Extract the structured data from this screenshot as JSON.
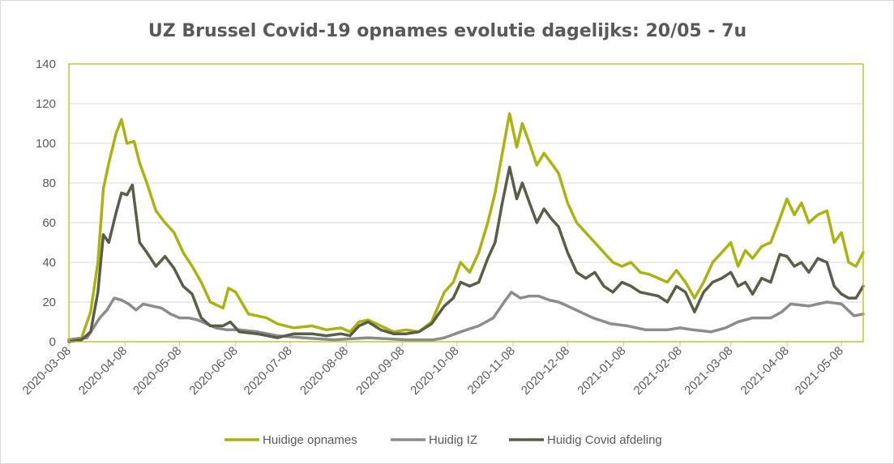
{
  "chart_data": {
    "type": "line",
    "title": "UZ Brussel Covid-19 opnames evolutie dagelijks: 20/05 - 7u",
    "xlabel": "",
    "ylabel": "",
    "ylim": [
      0,
      140
    ],
    "y_ticks": [
      "0",
      "20",
      "40",
      "60",
      "80",
      "100",
      "120",
      "140"
    ],
    "x_tick_labels": [
      "2020-03-08",
      "2020-04-08",
      "2020-05-08",
      "2020-06-08",
      "2020-07-08",
      "2020-08-08",
      "2020-09-08",
      "2020-10-08",
      "2020-11-08",
      "2020-12-08",
      "2021-01-08",
      "2021-02-08",
      "2021-03-08",
      "2021-04-08",
      "2021-05-08"
    ],
    "x_range": [
      "2020-03-08",
      "2021-05-20"
    ],
    "grid": "horizontal",
    "legend_position": "bottom",
    "series": [
      {
        "name": "Huidige opnames",
        "color": "#a9b40f",
        "points": [
          [
            "2020-03-08",
            1
          ],
          [
            "2020-03-15",
            2
          ],
          [
            "2020-03-20",
            15
          ],
          [
            "2020-03-24",
            40
          ],
          [
            "2020-03-27",
            77
          ],
          [
            "2020-03-30",
            90
          ],
          [
            "2020-04-03",
            105
          ],
          [
            "2020-04-06",
            112
          ],
          [
            "2020-04-09",
            100
          ],
          [
            "2020-04-13",
            101
          ],
          [
            "2020-04-16",
            90
          ],
          [
            "2020-04-20",
            80
          ],
          [
            "2020-04-25",
            66
          ],
          [
            "2020-04-30",
            60
          ],
          [
            "2020-05-05",
            55
          ],
          [
            "2020-05-10",
            45
          ],
          [
            "2020-05-15",
            38
          ],
          [
            "2020-05-20",
            30
          ],
          [
            "2020-05-25",
            20
          ],
          [
            "2020-06-01",
            17
          ],
          [
            "2020-06-04",
            27
          ],
          [
            "2020-06-08",
            25
          ],
          [
            "2020-06-15",
            14
          ],
          [
            "2020-06-25",
            12
          ],
          [
            "2020-07-01",
            9
          ],
          [
            "2020-07-10",
            7
          ],
          [
            "2020-07-20",
            8
          ],
          [
            "2020-07-28",
            6
          ],
          [
            "2020-08-05",
            7
          ],
          [
            "2020-08-10",
            5
          ],
          [
            "2020-08-15",
            10
          ],
          [
            "2020-08-20",
            11
          ],
          [
            "2020-08-27",
            8
          ],
          [
            "2020-09-03",
            5
          ],
          [
            "2020-09-10",
            6
          ],
          [
            "2020-09-17",
            5
          ],
          [
            "2020-09-24",
            10
          ],
          [
            "2020-10-01",
            25
          ],
          [
            "2020-10-06",
            30
          ],
          [
            "2020-10-10",
            40
          ],
          [
            "2020-10-15",
            35
          ],
          [
            "2020-10-20",
            45
          ],
          [
            "2020-10-25",
            60
          ],
          [
            "2020-10-29",
            75
          ],
          [
            "2020-11-02",
            95
          ],
          [
            "2020-11-06",
            115
          ],
          [
            "2020-11-10",
            98
          ],
          [
            "2020-11-13",
            110
          ],
          [
            "2020-11-17",
            100
          ],
          [
            "2020-11-21",
            89
          ],
          [
            "2020-11-25",
            95
          ],
          [
            "2020-11-29",
            90
          ],
          [
            "2020-12-03",
            85
          ],
          [
            "2020-12-08",
            70
          ],
          [
            "2020-12-13",
            60
          ],
          [
            "2020-12-18",
            55
          ],
          [
            "2020-12-23",
            50
          ],
          [
            "2020-12-28",
            45
          ],
          [
            "2021-01-02",
            40
          ],
          [
            "2021-01-07",
            38
          ],
          [
            "2021-01-12",
            40
          ],
          [
            "2021-01-17",
            35
          ],
          [
            "2021-01-22",
            34
          ],
          [
            "2021-01-27",
            32
          ],
          [
            "2021-02-01",
            30
          ],
          [
            "2021-02-06",
            36
          ],
          [
            "2021-02-11",
            30
          ],
          [
            "2021-02-16",
            22
          ],
          [
            "2021-02-21",
            30
          ],
          [
            "2021-02-26",
            40
          ],
          [
            "2021-03-03",
            45
          ],
          [
            "2021-03-08",
            50
          ],
          [
            "2021-03-12",
            38
          ],
          [
            "2021-03-16",
            46
          ],
          [
            "2021-03-20",
            42
          ],
          [
            "2021-03-25",
            48
          ],
          [
            "2021-03-30",
            50
          ],
          [
            "2021-04-04",
            62
          ],
          [
            "2021-04-08",
            72
          ],
          [
            "2021-04-12",
            64
          ],
          [
            "2021-04-16",
            70
          ],
          [
            "2021-04-20",
            60
          ],
          [
            "2021-04-25",
            64
          ],
          [
            "2021-04-30",
            66
          ],
          [
            "2021-05-04",
            50
          ],
          [
            "2021-05-08",
            55
          ],
          [
            "2021-05-12",
            40
          ],
          [
            "2021-05-16",
            38
          ],
          [
            "2021-05-20",
            45
          ]
        ]
      },
      {
        "name": "Huidig IZ",
        "color": "#8c8c8c",
        "points": [
          [
            "2020-03-08",
            1
          ],
          [
            "2020-03-18",
            2
          ],
          [
            "2020-03-25",
            12
          ],
          [
            "2020-03-29",
            16
          ],
          [
            "2020-04-02",
            22
          ],
          [
            "2020-04-06",
            21
          ],
          [
            "2020-04-10",
            19
          ],
          [
            "2020-04-14",
            16
          ],
          [
            "2020-04-18",
            19
          ],
          [
            "2020-04-23",
            18
          ],
          [
            "2020-04-28",
            17
          ],
          [
            "2020-05-03",
            14
          ],
          [
            "2020-05-08",
            12
          ],
          [
            "2020-05-13",
            12
          ],
          [
            "2020-05-18",
            11
          ],
          [
            "2020-05-23",
            9
          ],
          [
            "2020-05-28",
            7
          ],
          [
            "2020-06-03",
            6
          ],
          [
            "2020-06-10",
            6
          ],
          [
            "2020-06-20",
            5
          ],
          [
            "2020-07-01",
            3
          ],
          [
            "2020-07-15",
            2
          ],
          [
            "2020-08-01",
            1
          ],
          [
            "2020-08-20",
            2
          ],
          [
            "2020-09-10",
            1
          ],
          [
            "2020-09-25",
            1
          ],
          [
            "2020-10-01",
            2
          ],
          [
            "2020-10-10",
            5
          ],
          [
            "2020-10-20",
            8
          ],
          [
            "2020-10-28",
            12
          ],
          [
            "2020-11-03",
            20
          ],
          [
            "2020-11-07",
            25
          ],
          [
            "2020-11-12",
            22
          ],
          [
            "2020-11-17",
            23
          ],
          [
            "2020-11-22",
            23
          ],
          [
            "2020-11-28",
            21
          ],
          [
            "2020-12-03",
            20
          ],
          [
            "2020-12-08",
            18
          ],
          [
            "2020-12-15",
            15
          ],
          [
            "2020-12-22",
            12
          ],
          [
            "2021-01-01",
            9
          ],
          [
            "2021-01-10",
            8
          ],
          [
            "2021-01-20",
            6
          ],
          [
            "2021-02-01",
            6
          ],
          [
            "2021-02-08",
            7
          ],
          [
            "2021-02-15",
            6
          ],
          [
            "2021-02-25",
            5
          ],
          [
            "2021-03-05",
            7
          ],
          [
            "2021-03-12",
            10
          ],
          [
            "2021-03-20",
            12
          ],
          [
            "2021-03-30",
            12
          ],
          [
            "2021-04-05",
            15
          ],
          [
            "2021-04-10",
            19
          ],
          [
            "2021-04-20",
            18
          ],
          [
            "2021-04-30",
            20
          ],
          [
            "2021-05-08",
            19
          ],
          [
            "2021-05-15",
            13
          ],
          [
            "2021-05-20",
            14
          ]
        ]
      },
      {
        "name": "Huidig Covid afdeling",
        "color": "#5a5e48",
        "points": [
          [
            "2020-03-08",
            0
          ],
          [
            "2020-03-15",
            1
          ],
          [
            "2020-03-20",
            5
          ],
          [
            "2020-03-24",
            25
          ],
          [
            "2020-03-27",
            54
          ],
          [
            "2020-03-30",
            50
          ],
          [
            "2020-04-03",
            65
          ],
          [
            "2020-04-06",
            75
          ],
          [
            "2020-04-09",
            74
          ],
          [
            "2020-04-12",
            79
          ],
          [
            "2020-04-16",
            50
          ],
          [
            "2020-04-20",
            45
          ],
          [
            "2020-04-25",
            38
          ],
          [
            "2020-04-30",
            43
          ],
          [
            "2020-05-05",
            37
          ],
          [
            "2020-05-10",
            28
          ],
          [
            "2020-05-15",
            24
          ],
          [
            "2020-05-20",
            12
          ],
          [
            "2020-05-25",
            8
          ],
          [
            "2020-06-01",
            8
          ],
          [
            "2020-06-05",
            10
          ],
          [
            "2020-06-10",
            5
          ],
          [
            "2020-06-20",
            4
          ],
          [
            "2020-07-01",
            2
          ],
          [
            "2020-07-10",
            4
          ],
          [
            "2020-07-20",
            4
          ],
          [
            "2020-07-28",
            3
          ],
          [
            "2020-08-05",
            4
          ],
          [
            "2020-08-10",
            3
          ],
          [
            "2020-08-15",
            8
          ],
          [
            "2020-08-20",
            10
          ],
          [
            "2020-08-27",
            6
          ],
          [
            "2020-09-03",
            4
          ],
          [
            "2020-09-10",
            4
          ],
          [
            "2020-09-17",
            5
          ],
          [
            "2020-09-24",
            9
          ],
          [
            "2020-10-01",
            18
          ],
          [
            "2020-10-06",
            22
          ],
          [
            "2020-10-10",
            30
          ],
          [
            "2020-10-15",
            28
          ],
          [
            "2020-10-20",
            30
          ],
          [
            "2020-10-25",
            42
          ],
          [
            "2020-10-29",
            50
          ],
          [
            "2020-11-02",
            70
          ],
          [
            "2020-11-06",
            88
          ],
          [
            "2020-11-10",
            72
          ],
          [
            "2020-11-13",
            80
          ],
          [
            "2020-11-17",
            70
          ],
          [
            "2020-11-21",
            60
          ],
          [
            "2020-11-25",
            67
          ],
          [
            "2020-11-29",
            62
          ],
          [
            "2020-12-03",
            58
          ],
          [
            "2020-12-08",
            45
          ],
          [
            "2020-12-13",
            35
          ],
          [
            "2020-12-18",
            32
          ],
          [
            "2020-12-23",
            35
          ],
          [
            "2020-12-28",
            28
          ],
          [
            "2021-01-02",
            25
          ],
          [
            "2021-01-07",
            30
          ],
          [
            "2021-01-12",
            28
          ],
          [
            "2021-01-17",
            25
          ],
          [
            "2021-01-22",
            24
          ],
          [
            "2021-01-27",
            23
          ],
          [
            "2021-02-01",
            20
          ],
          [
            "2021-02-06",
            28
          ],
          [
            "2021-02-11",
            25
          ],
          [
            "2021-02-16",
            15
          ],
          [
            "2021-02-21",
            25
          ],
          [
            "2021-02-26",
            30
          ],
          [
            "2021-03-03",
            32
          ],
          [
            "2021-03-08",
            35
          ],
          [
            "2021-03-12",
            28
          ],
          [
            "2021-03-16",
            30
          ],
          [
            "2021-03-20",
            24
          ],
          [
            "2021-03-25",
            32
          ],
          [
            "2021-03-30",
            30
          ],
          [
            "2021-04-04",
            44
          ],
          [
            "2021-04-08",
            43
          ],
          [
            "2021-04-12",
            38
          ],
          [
            "2021-04-16",
            40
          ],
          [
            "2021-04-20",
            35
          ],
          [
            "2021-04-25",
            42
          ],
          [
            "2021-04-30",
            40
          ],
          [
            "2021-05-04",
            28
          ],
          [
            "2021-05-08",
            24
          ],
          [
            "2021-05-12",
            22
          ],
          [
            "2021-05-16",
            22
          ],
          [
            "2021-05-20",
            28
          ]
        ]
      }
    ]
  }
}
